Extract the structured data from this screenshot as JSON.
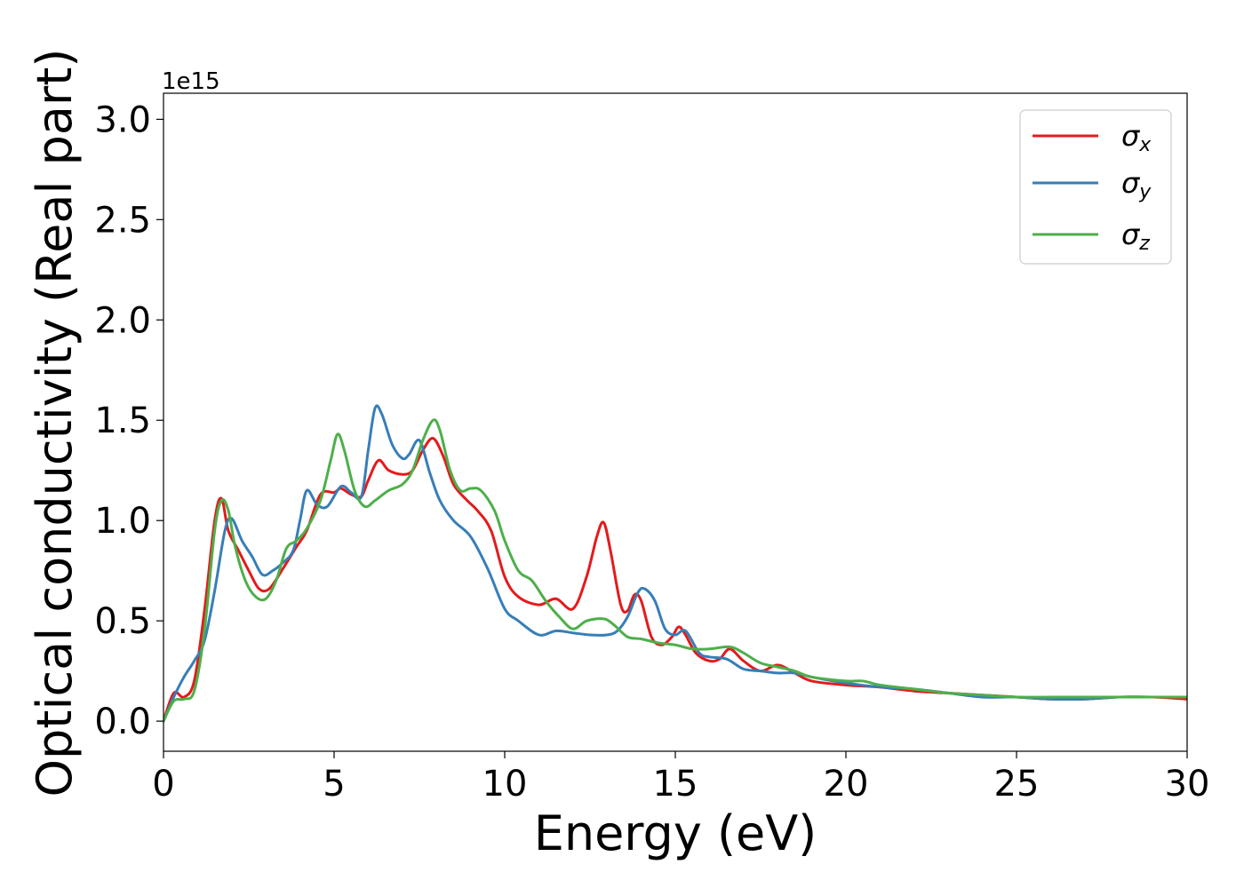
{
  "chart_data": {
    "type": "line",
    "title": "",
    "xlabel": "Energy (eV)",
    "ylabel": "Optical conductivity (Real part)",
    "y_offset_label": "1e15",
    "xlim": [
      0,
      30
    ],
    "ylim": [
      -0.15,
      3.13
    ],
    "xticks": [
      0,
      5,
      10,
      15,
      20,
      25,
      30
    ],
    "xtick_labels": [
      "0",
      "5",
      "10",
      "15",
      "20",
      "25",
      "30"
    ],
    "yticks": [
      0.0,
      0.5,
      1.0,
      1.5,
      2.0,
      2.5,
      3.0
    ],
    "ytick_labels": [
      "0.0",
      "0.5",
      "1.0",
      "1.5",
      "2.0",
      "2.5",
      "3.0"
    ],
    "grid": false,
    "legend_position": "top-right",
    "series": [
      {
        "name": "σx",
        "legend_base": "σ",
        "legend_sub": "x",
        "color": "#e41a1c",
        "x": [
          0,
          0.3,
          0.6,
          0.9,
          1.2,
          1.5,
          1.7,
          1.9,
          2.2,
          2.5,
          2.8,
          3.1,
          3.5,
          3.9,
          4.2,
          4.6,
          5.0,
          5.2,
          5.5,
          5.8,
          6.0,
          6.3,
          6.6,
          7.0,
          7.3,
          7.6,
          7.9,
          8.2,
          8.5,
          8.9,
          9.2,
          9.6,
          10.0,
          10.4,
          11.0,
          11.5,
          12.0,
          12.4,
          12.7,
          12.9,
          13.1,
          13.4,
          13.6,
          13.8,
          14.0,
          14.3,
          14.6,
          14.9,
          15.1,
          15.3,
          15.6,
          16.0,
          16.3,
          16.6,
          17.0,
          17.5,
          18.0,
          18.5,
          19.0,
          20.0,
          21.0,
          22.0,
          23.0,
          24.0,
          25.0,
          26.0,
          27.0,
          28.0,
          29.0,
          30.0
        ],
        "values": [
          0.0,
          0.14,
          0.12,
          0.2,
          0.55,
          1.0,
          1.11,
          0.95,
          0.85,
          0.75,
          0.66,
          0.66,
          0.76,
          0.87,
          0.95,
          1.13,
          1.14,
          1.16,
          1.13,
          1.12,
          1.2,
          1.3,
          1.25,
          1.23,
          1.25,
          1.35,
          1.41,
          1.32,
          1.18,
          1.1,
          1.05,
          0.95,
          0.72,
          0.62,
          0.58,
          0.61,
          0.56,
          0.72,
          0.92,
          0.99,
          0.85,
          0.58,
          0.55,
          0.63,
          0.6,
          0.42,
          0.38,
          0.42,
          0.47,
          0.43,
          0.34,
          0.3,
          0.31,
          0.36,
          0.3,
          0.25,
          0.28,
          0.24,
          0.2,
          0.18,
          0.17,
          0.15,
          0.14,
          0.13,
          0.12,
          0.11,
          0.11,
          0.12,
          0.12,
          0.11
        ]
      },
      {
        "name": "σy",
        "legend_base": "σ",
        "legend_sub": "y",
        "color": "#377eb8",
        "x": [
          0,
          0.3,
          0.6,
          0.9,
          1.2,
          1.5,
          1.8,
          2.0,
          2.3,
          2.6,
          2.9,
          3.2,
          3.5,
          3.8,
          4.0,
          4.2,
          4.5,
          4.8,
          5.2,
          5.5,
          5.8,
          6.0,
          6.2,
          6.4,
          6.7,
          7.0,
          7.2,
          7.5,
          7.8,
          8.1,
          8.5,
          9.0,
          9.5,
          10.0,
          10.4,
          11.0,
          11.5,
          12.0,
          12.5,
          13.0,
          13.3,
          13.6,
          13.9,
          14.1,
          14.4,
          14.7,
          15.0,
          15.3,
          15.7,
          16.0,
          16.5,
          17.0,
          17.5,
          18.0,
          18.5,
          19.0,
          20.0,
          21.0,
          22.0,
          23.0,
          24.0,
          25.0,
          26.0,
          27.0,
          28.0,
          29.0,
          30.0
        ],
        "values": [
          0.0,
          0.12,
          0.22,
          0.3,
          0.4,
          0.65,
          0.95,
          1.01,
          0.9,
          0.82,
          0.73,
          0.75,
          0.79,
          0.85,
          1.0,
          1.15,
          1.08,
          1.07,
          1.17,
          1.14,
          1.12,
          1.35,
          1.56,
          1.53,
          1.38,
          1.31,
          1.33,
          1.4,
          1.24,
          1.1,
          1.0,
          0.92,
          0.76,
          0.56,
          0.5,
          0.43,
          0.45,
          0.44,
          0.43,
          0.43,
          0.45,
          0.52,
          0.64,
          0.66,
          0.6,
          0.46,
          0.43,
          0.45,
          0.34,
          0.32,
          0.31,
          0.26,
          0.25,
          0.24,
          0.24,
          0.22,
          0.19,
          0.17,
          0.16,
          0.14,
          0.12,
          0.12,
          0.11,
          0.11,
          0.12,
          0.12,
          0.12
        ]
      },
      {
        "name": "σz",
        "legend_base": "σ",
        "legend_sub": "z",
        "color": "#4daf4a",
        "x": [
          0,
          0.3,
          0.6,
          0.9,
          1.2,
          1.5,
          1.7,
          1.9,
          2.1,
          2.4,
          2.7,
          3.0,
          3.3,
          3.6,
          3.9,
          4.2,
          4.6,
          4.9,
          5.1,
          5.3,
          5.6,
          5.9,
          6.2,
          6.6,
          7.0,
          7.3,
          7.6,
          7.9,
          8.1,
          8.4,
          8.7,
          9.0,
          9.3,
          9.7,
          10.0,
          10.4,
          10.8,
          11.2,
          11.6,
          12.0,
          12.4,
          12.9,
          13.2,
          13.6,
          14.0,
          14.5,
          15.0,
          15.5,
          16.0,
          16.6,
          17.0,
          17.5,
          18.0,
          18.5,
          19.0,
          20.0,
          20.5,
          21.0,
          22.0,
          23.0,
          24.0,
          25.0,
          26.0,
          27.0,
          28.0,
          29.0,
          30.0
        ],
        "values": [
          0.0,
          0.1,
          0.11,
          0.15,
          0.45,
          0.95,
          1.1,
          1.05,
          0.87,
          0.7,
          0.62,
          0.61,
          0.7,
          0.86,
          0.9,
          0.96,
          1.1,
          1.3,
          1.43,
          1.35,
          1.15,
          1.07,
          1.1,
          1.15,
          1.18,
          1.25,
          1.4,
          1.5,
          1.45,
          1.25,
          1.15,
          1.16,
          1.15,
          1.05,
          0.9,
          0.75,
          0.7,
          0.6,
          0.52,
          0.46,
          0.5,
          0.51,
          0.48,
          0.42,
          0.41,
          0.39,
          0.38,
          0.36,
          0.36,
          0.37,
          0.34,
          0.29,
          0.27,
          0.25,
          0.22,
          0.2,
          0.2,
          0.18,
          0.16,
          0.14,
          0.13,
          0.12,
          0.12,
          0.12,
          0.12,
          0.12,
          0.12
        ]
      }
    ]
  }
}
